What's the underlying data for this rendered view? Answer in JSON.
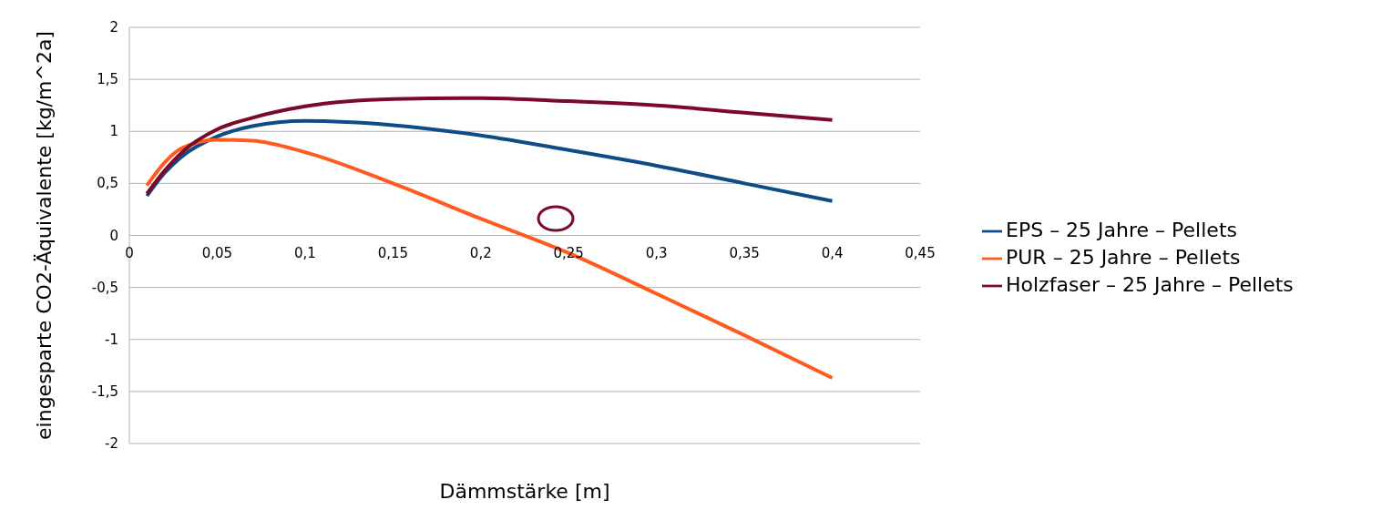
{
  "chart_data": {
    "type": "line",
    "xlabel": "Dämmstärke [m]",
    "ylabel": "eingesparte CO2-Äquivalente [kg/m^2a]",
    "x": [
      0.01,
      0.02,
      0.03,
      0.05,
      0.07,
      0.1,
      0.15,
      0.2,
      0.25,
      0.3,
      0.35,
      0.4
    ],
    "series": [
      {
        "name": "EPS – 25 Jahre – Pellets",
        "color": "#0f4c87",
        "values": [
          0.38,
          0.6,
          0.76,
          0.95,
          1.05,
          1.1,
          1.06,
          0.96,
          0.82,
          0.67,
          0.5,
          0.33
        ]
      },
      {
        "name": "PUR – 25 Jahre – Pellets",
        "color": "#ff5a1f",
        "values": [
          0.48,
          0.7,
          0.84,
          0.92,
          0.91,
          0.8,
          0.5,
          0.16,
          -0.17,
          -0.56,
          -0.96,
          -1.37
        ]
      },
      {
        "name": "Holzfaser – 25 Jahre – Pellets",
        "color": "#7b0a2a",
        "values": [
          0.4,
          0.62,
          0.8,
          1.02,
          1.13,
          1.24,
          1.31,
          1.32,
          1.29,
          1.25,
          1.18,
          1.11
        ]
      }
    ],
    "xlim": [
      0,
      0.45
    ],
    "xticks": [
      0,
      {
        "value": 0.05,
        "label": "0,05"
      },
      {
        "value": 0.1,
        "label": "0,1"
      },
      {
        "value": 0.15,
        "label": "0,15"
      },
      {
        "value": 0.2,
        "label": "0,2"
      },
      {
        "value": 0.25,
        "label": "0,25"
      },
      {
        "value": 0.3,
        "label": "0,3"
      },
      {
        "value": 0.35,
        "label": "0,35"
      },
      {
        "value": 0.4,
        "label": "0,4"
      },
      {
        "value": 0.45,
        "label": "0,45"
      }
    ],
    "ylim": [
      -2,
      2
    ],
    "yticks": [
      -2,
      {
        "value": -1.5,
        "label": "-1,5"
      },
      -1,
      {
        "value": -0.5,
        "label": "-0,5"
      },
      0,
      {
        "value": 0.5,
        "label": "0,5"
      },
      1,
      {
        "value": 1.5,
        "label": "1,5"
      },
      2
    ],
    "grid": "y",
    "legend": "right",
    "marker": "none",
    "line_style": "solid"
  }
}
